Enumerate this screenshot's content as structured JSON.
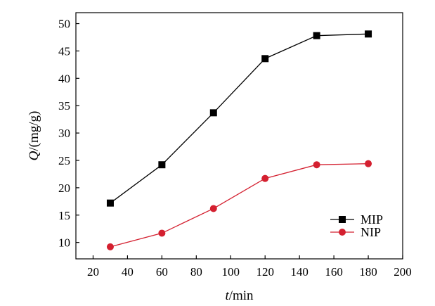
{
  "chart_data": {
    "type": "line",
    "title": "",
    "xlabel": {
      "italic": "t",
      "rest": "/min"
    },
    "ylabel": {
      "italic": "Q",
      "rest": "/(mg/g)"
    },
    "xlim": [
      10,
      200
    ],
    "ylim": [
      7,
      52
    ],
    "xticks": [
      20,
      40,
      60,
      80,
      100,
      120,
      140,
      160,
      180,
      200
    ],
    "yticks": [
      10,
      15,
      20,
      25,
      30,
      35,
      40,
      45,
      50
    ],
    "grid": false,
    "legend_position": "bottom-right",
    "series": [
      {
        "name": "MIP",
        "color": "#000000",
        "marker": "square",
        "x": [
          30,
          60,
          90,
          120,
          150,
          180
        ],
        "values": [
          17.2,
          24.2,
          33.7,
          43.6,
          47.8,
          48.1
        ]
      },
      {
        "name": "NIP",
        "color": "#d42030",
        "marker": "circle",
        "x": [
          30,
          60,
          90,
          120,
          150,
          180
        ],
        "values": [
          9.2,
          11.7,
          16.2,
          21.7,
          24.2,
          24.4
        ]
      }
    ]
  }
}
